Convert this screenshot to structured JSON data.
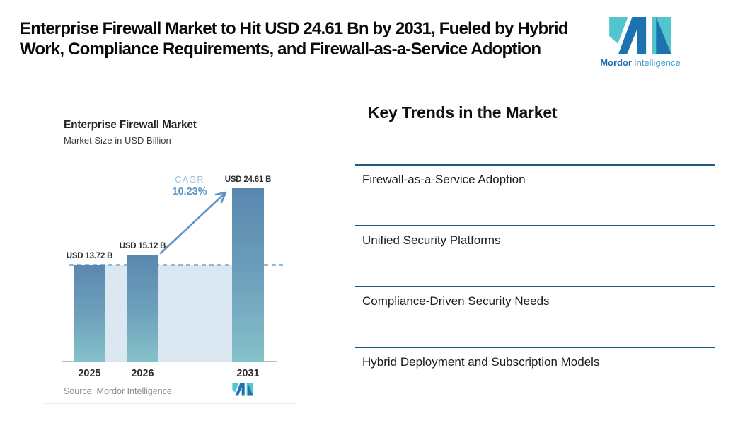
{
  "header": {
    "title": "Enterprise Firewall Market to Hit USD 24.61 Bn by 2031, Fueled by Hybrid Work, Compliance Requirements, and Firewall-as-a-Service Adoption"
  },
  "brand": {
    "name_bold": "Mordor",
    "name_light": "Intelligence",
    "teal": "#52c5cd",
    "blue": "#1d72b0"
  },
  "chart_data": {
    "type": "bar",
    "title": "Enterprise Firewall Market",
    "subtitle": "Market Size in USD Billion",
    "categories": [
      "2025",
      "2026",
      "2031"
    ],
    "values": [
      13.72,
      15.12,
      24.61
    ],
    "value_labels": [
      "USD 13.72 B",
      "USD 15.12 B",
      "USD 24.61 B"
    ],
    "annotations": {
      "cagr_label": "CAGR",
      "cagr_value": "10.23%",
      "baseline_ref": 13.72
    },
    "source": "Source: Mordor Intelligence",
    "ylim": [
      0,
      24.61
    ],
    "grid": false,
    "legend": "none",
    "bar_gradient_top": "#5a87af",
    "bar_gradient_bottom": "#85c1c9",
    "baseline_band_color": "#dce8f1",
    "dashed_line_color": "#8fbbda",
    "arrow_color": "#5f93c4"
  },
  "trends": {
    "heading": "Key Trends in the Market",
    "separator_color": "#1e5d80",
    "items": [
      "Firewall-as-a-Service Adoption",
      "Unified Security Platforms",
      "Compliance-Driven Security Needs",
      "Hybrid Deployment and Subscription Models"
    ]
  }
}
